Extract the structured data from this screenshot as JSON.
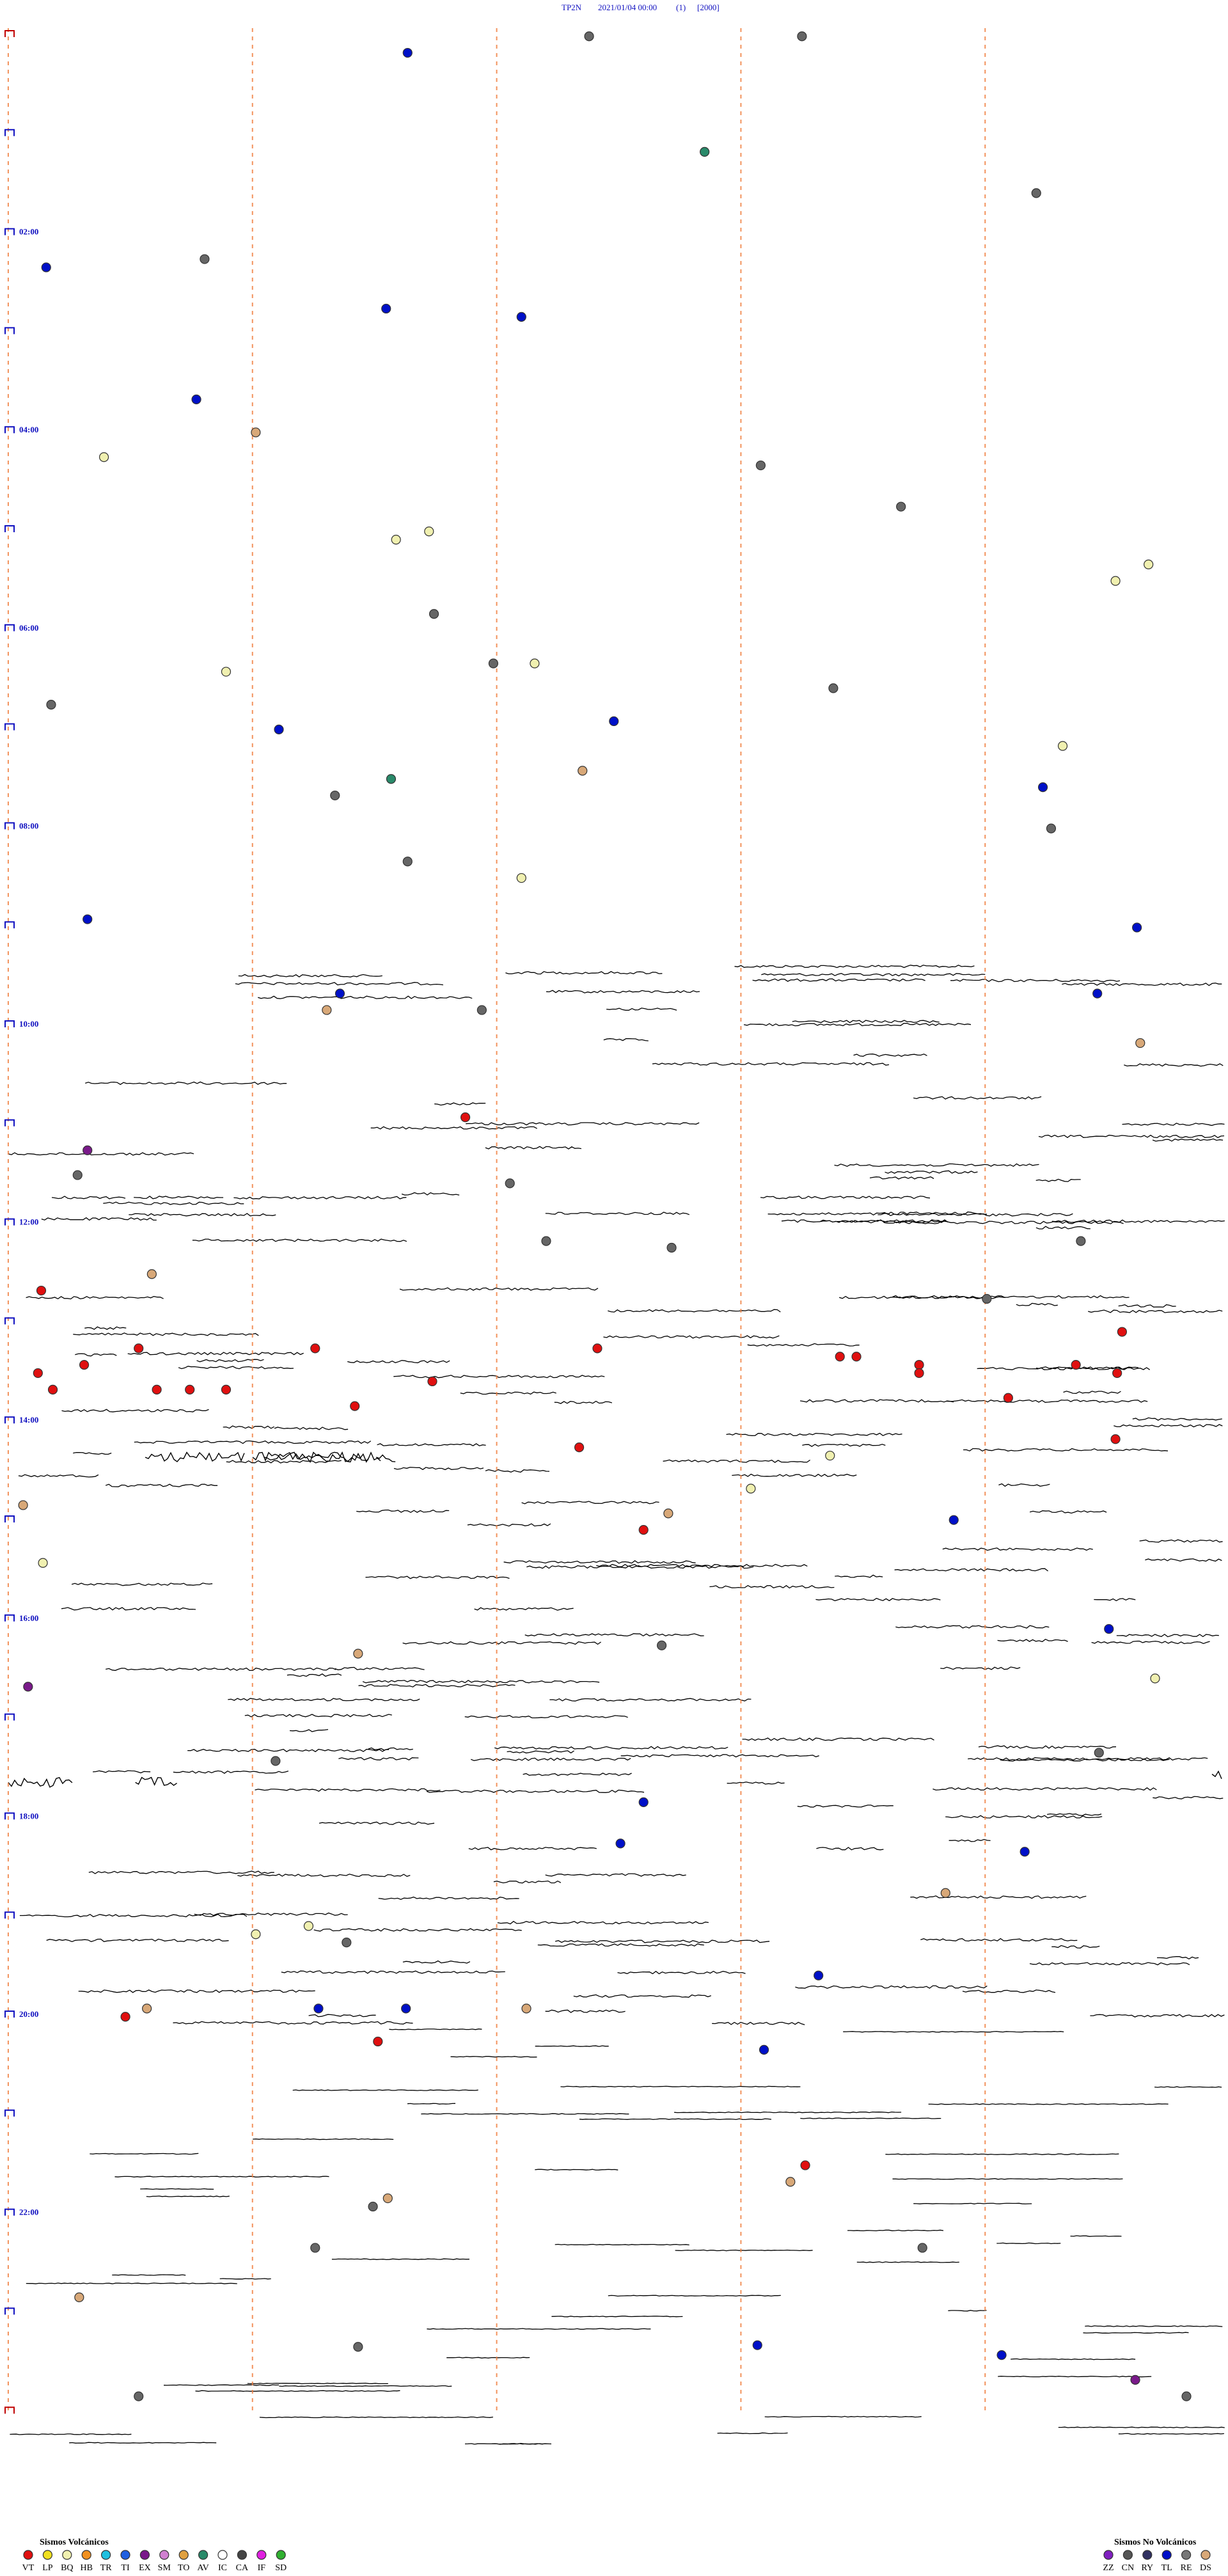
{
  "header": {
    "station": "TP2N",
    "datetime": "2021/01/04 00:00",
    "count": "(1)",
    "scale": "[2000]"
  },
  "time_labels": [
    "02:00",
    "04:00",
    "06:00",
    "08:00",
    "10:00",
    "12:00",
    "14:00",
    "16:00",
    "18:00",
    "20:00",
    "22:00"
  ],
  "legend": {
    "volcanic": {
      "title": "Sismos Volcánicos",
      "codes": [
        "VT",
        "LP",
        "BQ",
        "HB",
        "TR",
        "TI",
        "EX",
        "SM",
        "TO",
        "AV",
        "IC",
        "CA",
        "IF",
        "SD"
      ]
    },
    "non_volcanic": {
      "title": "Sismos No Volcánicos",
      "codes": [
        "ZZ",
        "CN",
        "RY",
        "TL",
        "RE",
        "DS"
      ]
    }
  }
}
